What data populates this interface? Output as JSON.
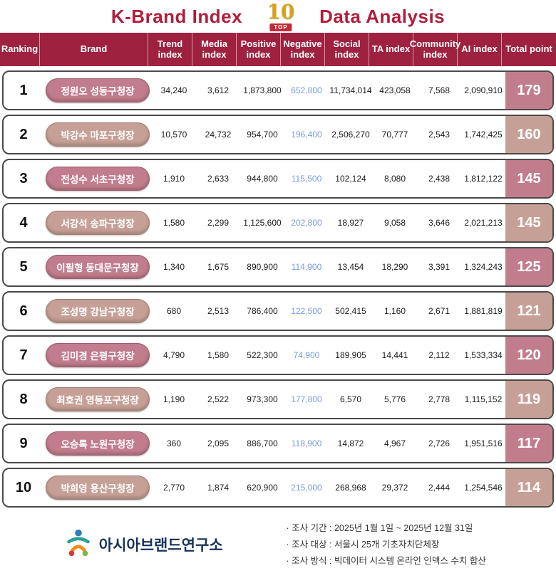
{
  "title": {
    "left": "K-Brand Index",
    "right": "Data Analysis",
    "badge_number": "10",
    "badge_label": "TOP"
  },
  "chart_data": {
    "type": "table",
    "title": "K-Brand Index TOP 10 Data Analysis",
    "columns": [
      "Ranking",
      "Brand",
      "Trend index",
      "Media index",
      "Positive index",
      "Negative index",
      "Social index",
      "TA index",
      "Community index",
      "AI index",
      "Total point"
    ],
    "rows": [
      {
        "rank": "1",
        "brand": "정원오 성동구청장",
        "trend": "34,240",
        "media": "3,612",
        "positive": "1,873,800",
        "negative": "652,800",
        "social": "11,734,014",
        "ta": "423,058",
        "community": "7,568",
        "ai": "2,090,910",
        "total": "179"
      },
      {
        "rank": "2",
        "brand": "박강수 마포구청장",
        "trend": "10,570",
        "media": "24,732",
        "positive": "954,700",
        "negative": "196,400",
        "social": "2,506,270",
        "ta": "70,777",
        "community": "2,543",
        "ai": "1,742,425",
        "total": "160"
      },
      {
        "rank": "3",
        "brand": "전성수 서초구청장",
        "trend": "1,910",
        "media": "2,633",
        "positive": "944,800",
        "negative": "115,500",
        "social": "102,124",
        "ta": "8,080",
        "community": "2,438",
        "ai": "1,812,122",
        "total": "145"
      },
      {
        "rank": "4",
        "brand": "서강석 송파구청장",
        "trend": "1,580",
        "media": "2,299",
        "positive": "1,125,600",
        "negative": "202,800",
        "social": "18,927",
        "ta": "9,058",
        "community": "3,646",
        "ai": "2,021,213",
        "total": "145"
      },
      {
        "rank": "5",
        "brand": "이필형 동대문구청장",
        "trend": "1,340",
        "media": "1,675",
        "positive": "890,900",
        "negative": "114,900",
        "social": "13,454",
        "ta": "18,290",
        "community": "3,391",
        "ai": "1,324,243",
        "total": "125"
      },
      {
        "rank": "6",
        "brand": "조성명 강남구청장",
        "trend": "680",
        "media": "2,513",
        "positive": "786,400",
        "negative": "122,500",
        "social": "502,415",
        "ta": "1,160",
        "community": "2,671",
        "ai": "1,881,819",
        "total": "121"
      },
      {
        "rank": "7",
        "brand": "김미경 은평구청장",
        "trend": "4,790",
        "media": "1,580",
        "positive": "522,300",
        "negative": "74,900",
        "social": "189,905",
        "ta": "14,441",
        "community": "2,112",
        "ai": "1,533,334",
        "total": "120"
      },
      {
        "rank": "8",
        "brand": "최호권 영등포구청장",
        "trend": "1,190",
        "media": "2,522",
        "positive": "973,300",
        "negative": "177,800",
        "social": "6,570",
        "ta": "5,776",
        "community": "2,778",
        "ai": "1,115,152",
        "total": "119"
      },
      {
        "rank": "9",
        "brand": "오승록 노원구청장",
        "trend": "360",
        "media": "2,095",
        "positive": "886,700",
        "negative": "118,900",
        "social": "14,872",
        "ta": "4,967",
        "community": "2,726",
        "ai": "1,951,516",
        "total": "117"
      },
      {
        "rank": "10",
        "brand": "박희영 용산구청장",
        "trend": "2,770",
        "media": "1,874",
        "positive": "620,900",
        "negative": "215,000",
        "social": "268,968",
        "ta": "29,372",
        "community": "2,444",
        "ai": "1,254,546",
        "total": "114"
      }
    ]
  },
  "footer": {
    "logo_text": "아시아브랜드연구소",
    "notes": [
      "· 조사 기간 : 2025년 1월 1일 ~ 2025년 12월 31일",
      "· 조사 대상 : 서울시 25개 기초자치단체장",
      "· 조사 방식 : 빅데이터 시스템 온라인 인덱스 수치 합산"
    ]
  },
  "colors": {
    "title_text": "#b01e3c",
    "header_bg": "#9e2140",
    "row_odd": "#c27d8c",
    "row_even": "#c6a096",
    "row_border": "#4a4a4a",
    "negative_value": "#7b9ade",
    "logo_text": "#16325c",
    "badge_gold": "#d9a21b",
    "badge_ribbon": "#c22b35"
  }
}
